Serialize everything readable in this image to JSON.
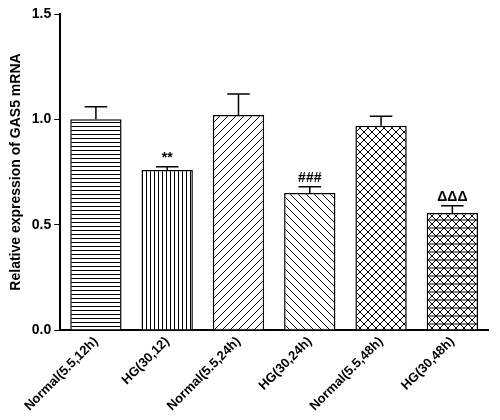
{
  "chart_data": {
    "type": "bar",
    "y_label": "Relative expression of GAS5 mRNA",
    "categories": [
      "Normal(5.5,12h)",
      "HG(30,12)",
      "Normal(5.5,24h)",
      "HG(30,24h)",
      "Normal(5.5,48h)",
      "HG(30,48h)"
    ],
    "values": [
      1.0,
      0.76,
      1.02,
      0.65,
      0.97,
      0.555
    ],
    "errors": [
      0.06,
      0.015,
      0.1,
      0.03,
      0.045,
      0.035
    ],
    "annotations": [
      null,
      "**",
      null,
      "###",
      null,
      "ΔΔΔ"
    ],
    "color": "#000000",
    "ylim": [
      0,
      1.5
    ],
    "yticks": [
      {
        "value": 0,
        "label": "0.0"
      },
      {
        "value": 0.5,
        "label": "0.5"
      },
      {
        "value": 1,
        "label": "1.0"
      },
      {
        "value": 1.5,
        "label": "1.5"
      }
    ],
    "grid": false
  }
}
